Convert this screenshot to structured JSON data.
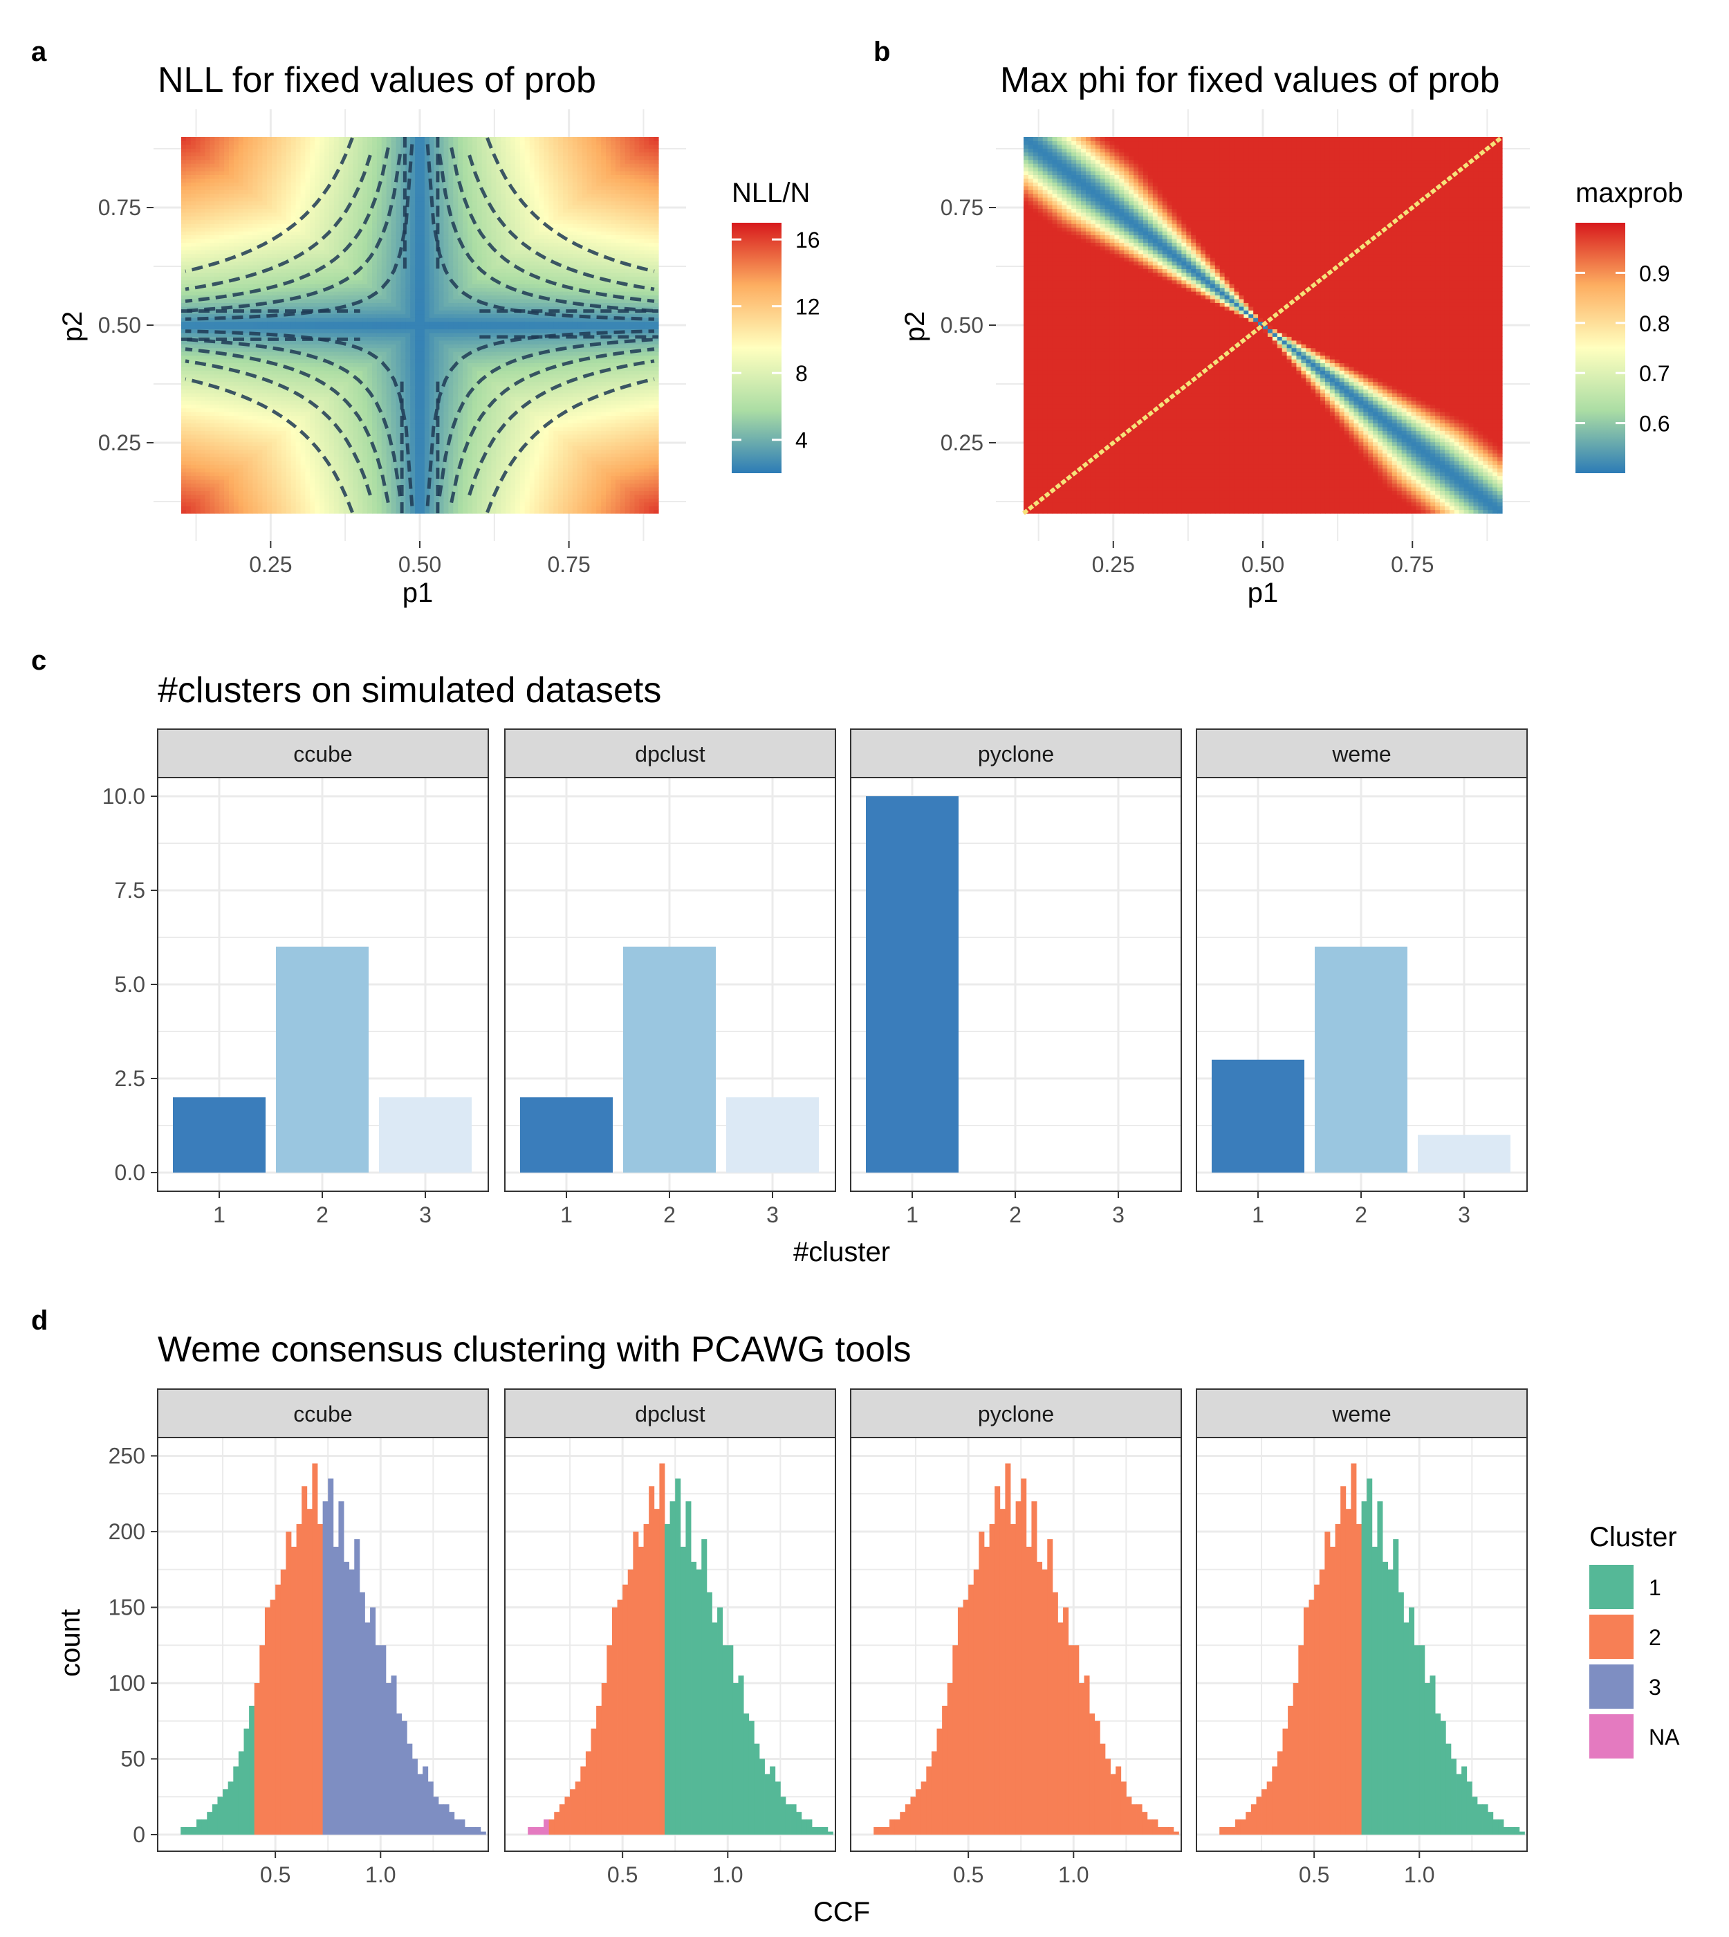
{
  "panels": {
    "a": {
      "letter": "a",
      "title": "NLL for fixed values of prob",
      "xlabel": "p1",
      "ylabel": "p2",
      "x_ticks": [
        "0.25",
        "0.50",
        "0.75"
      ],
      "y_ticks": [
        "0.25",
        "0.50",
        "0.75"
      ],
      "legend_title": "NLL/N",
      "legend_ticks": [
        "4",
        "8",
        "12",
        "16"
      ]
    },
    "b": {
      "letter": "b",
      "title": "Max phi for fixed values of prob",
      "xlabel": "p1",
      "ylabel": "p2",
      "x_ticks": [
        "0.25",
        "0.50",
        "0.75"
      ],
      "y_ticks": [
        "0.25",
        "0.50",
        "0.75"
      ],
      "legend_title": "maxprob",
      "legend_ticks": [
        "0.6",
        "0.7",
        "0.8",
        "0.9"
      ]
    },
    "c": {
      "letter": "c",
      "title": "#clusters on simulated datasets",
      "xlabel": "#cluster",
      "y_ticks": [
        "0.0",
        "2.5",
        "5.0",
        "7.5",
        "10.0"
      ],
      "x_ticks": [
        "1",
        "2",
        "3"
      ]
    },
    "d": {
      "letter": "d",
      "title": "Weme consensus clustering with PCAWG tools",
      "xlabel": "CCF",
      "ylabel": "count",
      "y_ticks": [
        "0",
        "50",
        "100",
        "150",
        "200",
        "250"
      ],
      "x_ticks": [
        "0.5",
        "1.0"
      ],
      "legend_title": "Cluster",
      "legend_items": [
        "1",
        "2",
        "3",
        "NA"
      ]
    }
  },
  "colors": {
    "spectral": [
      "#2c7bb6",
      "#abdda4",
      "#ffffbf",
      "#fdae61",
      "#d7191c"
    ],
    "bar_shades": [
      "#3a7dbb",
      "#9ac6e0",
      "#dce9f5"
    ],
    "cluster_1": "#55b897",
    "cluster_2": "#f77f55",
    "cluster_3": "#7e8ec2",
    "cluster_NA": "#e47ac0",
    "strip_fill": "#d9d9d9",
    "grid": "#ebebeb"
  },
  "chart_data": [
    {
      "panel": "a",
      "type": "heatmap",
      "title": "NLL for fixed values of prob",
      "xlabel": "p1",
      "ylabel": "p2",
      "xlim": [
        0.1,
        0.9
      ],
      "ylim": [
        0.1,
        0.9
      ],
      "z_name": "NLL/N",
      "z_range": [
        2,
        17
      ],
      "contours": "dashed",
      "legend": "right"
    },
    {
      "panel": "b",
      "type": "heatmap",
      "title": "Max phi for fixed values of prob",
      "xlabel": "p1",
      "ylabel": "p2",
      "xlim": [
        0.1,
        0.9
      ],
      "ylim": [
        0.1,
        0.9
      ],
      "z_name": "maxprob",
      "z_range": [
        0.5,
        1.0
      ],
      "legend": "right"
    },
    {
      "panel": "c",
      "type": "bar",
      "title": "#clusters on simulated datasets",
      "xlabel": "#cluster",
      "categories": [
        "1",
        "2",
        "3"
      ],
      "ylim": [
        0,
        11
      ],
      "facets": [
        {
          "name": "ccube",
          "values": [
            2,
            6,
            2
          ]
        },
        {
          "name": "dpclust",
          "values": [
            2,
            6,
            2
          ]
        },
        {
          "name": "pyclone",
          "values": [
            10,
            0,
            0
          ]
        },
        {
          "name": "weme",
          "values": [
            3,
            6,
            1
          ]
        }
      ]
    },
    {
      "panel": "d",
      "type": "bar",
      "title": "Weme consensus clustering with PCAWG tools",
      "xlabel": "CCF",
      "ylabel": "count",
      "xlim": [
        0.0,
        1.4
      ],
      "ylim": [
        0,
        260
      ],
      "bin_width": 0.025,
      "bin_start": 0.05,
      "totals": [
        5,
        5,
        5,
        10,
        10,
        15,
        20,
        25,
        30,
        35,
        45,
        55,
        70,
        85,
        100,
        125,
        150,
        155,
        165,
        175,
        200,
        190,
        205,
        230,
        215,
        245,
        205,
        220,
        235,
        190,
        220,
        180,
        175,
        195,
        160,
        140,
        150,
        125,
        125,
        100,
        105,
        80,
        75,
        60,
        50,
        40,
        45,
        35,
        25,
        20,
        20,
        15,
        10,
        10,
        5,
        5,
        5,
        2
      ],
      "legend": "right",
      "facets": [
        {
          "name": "ccube",
          "cluster_at_ccf": [
            {
              "from": 0.05,
              "to": 0.4,
              "cluster": "1"
            },
            {
              "from": 0.4,
              "to": 0.725,
              "cluster": "2"
            },
            {
              "from": 0.725,
              "to": 1.5,
              "cluster": "3"
            }
          ]
        },
        {
          "name": "dpclust",
          "cluster_at_ccf": [
            {
              "from": 0.05,
              "to": 0.15,
              "cluster": "NA"
            },
            {
              "from": 0.15,
              "to": 0.7,
              "cluster": "2"
            },
            {
              "from": 0.7,
              "to": 1.5,
              "cluster": "1"
            }
          ]
        },
        {
          "name": "pyclone",
          "cluster_at_ccf": [
            {
              "from": 0.05,
              "to": 1.5,
              "cluster": "2"
            }
          ]
        },
        {
          "name": "weme",
          "cluster_at_ccf": [
            {
              "from": 0.05,
              "to": 0.725,
              "cluster": "2"
            },
            {
              "from": 0.725,
              "to": 1.5,
              "cluster": "1"
            }
          ]
        }
      ]
    }
  ]
}
